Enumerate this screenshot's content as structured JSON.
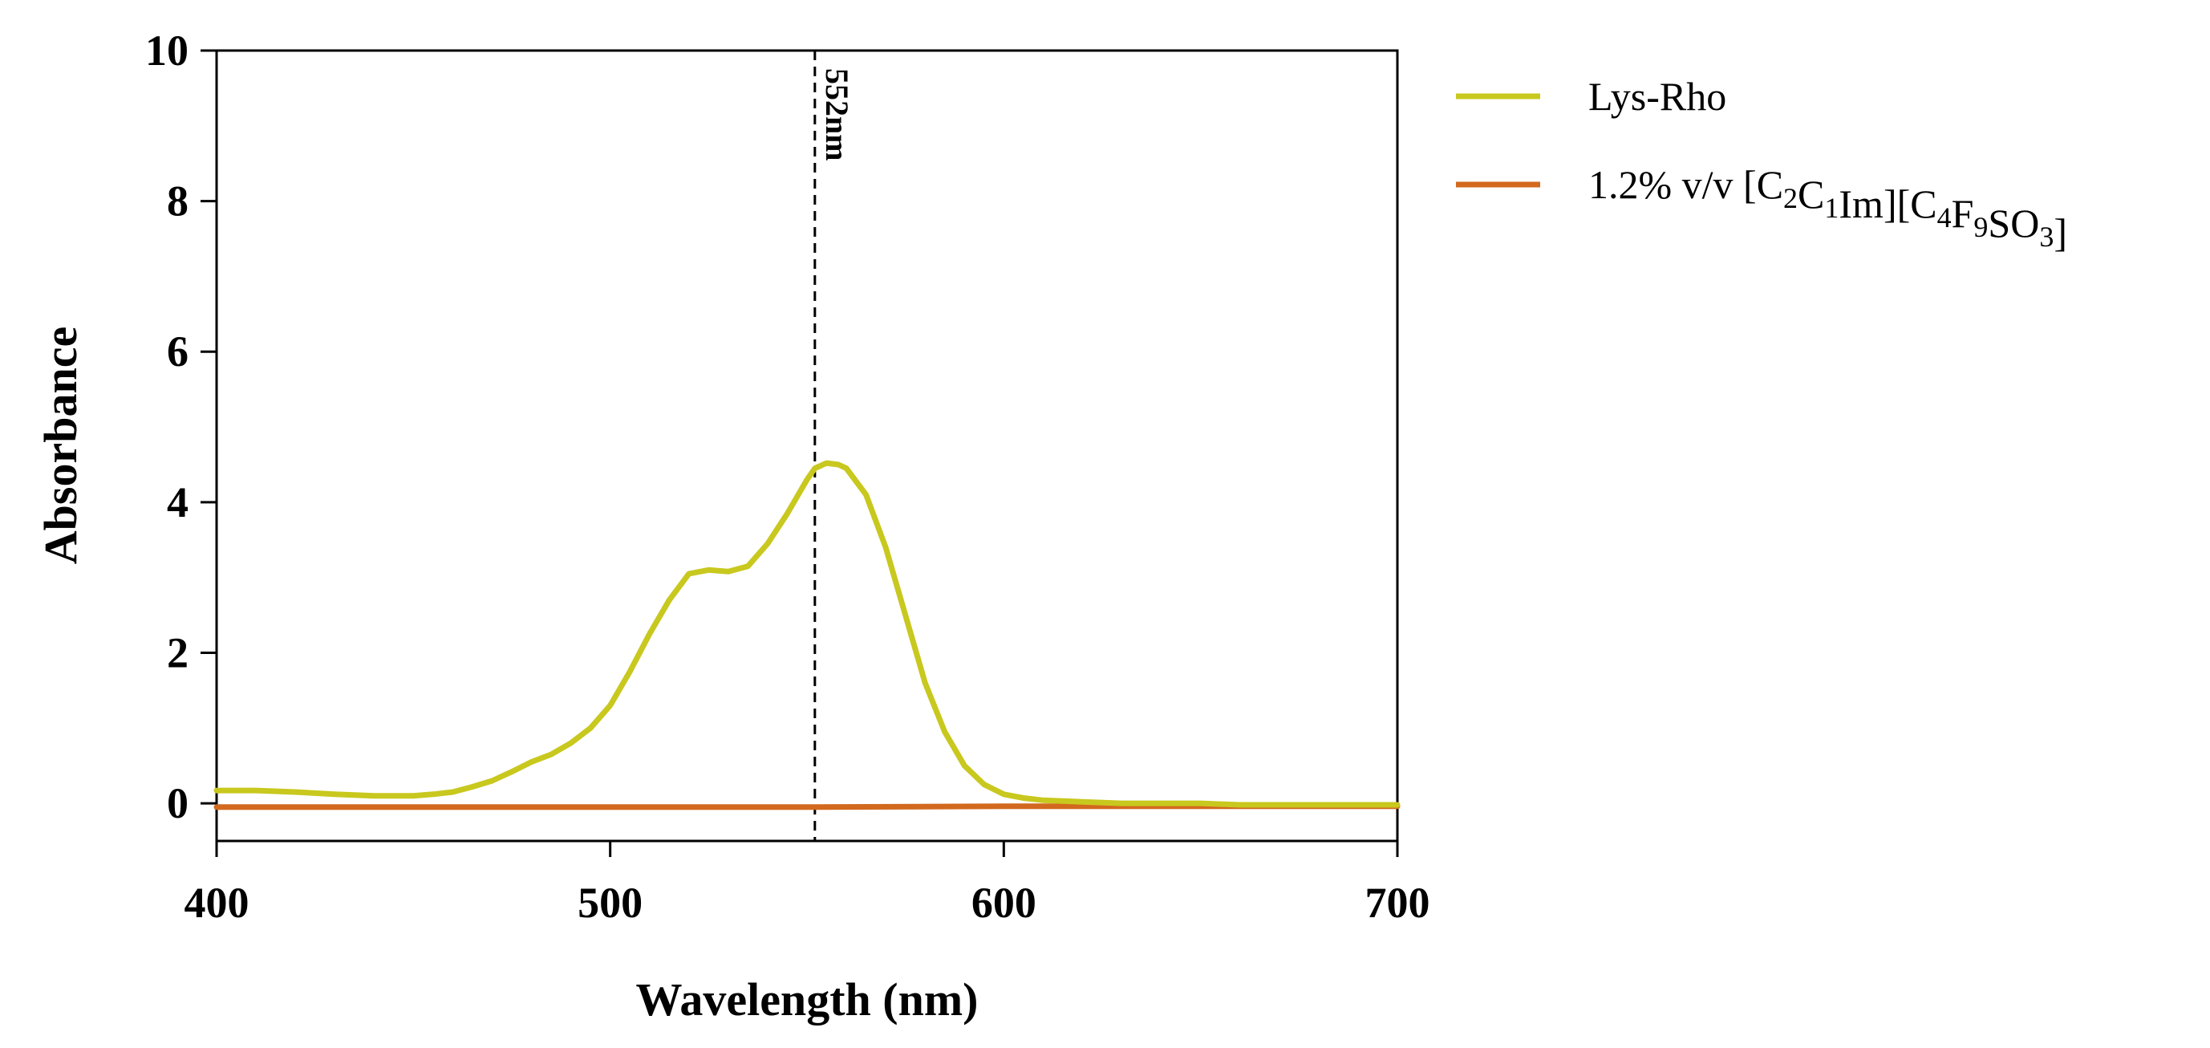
{
  "chart_data": {
    "type": "line",
    "title": "",
    "xlabel": "Wavelength (nm)",
    "ylabel": "Absorbance",
    "xlim": [
      400,
      700
    ],
    "ylim": [
      -0.5,
      10
    ],
    "xticks": [
      400,
      500,
      600,
      700
    ],
    "yticks": [
      0,
      2,
      4,
      6,
      8,
      10
    ],
    "xtick_labels": [
      "400",
      "500",
      "600",
      "700"
    ],
    "ytick_labels": [
      "0",
      "2",
      "4",
      "6",
      "8",
      "10"
    ],
    "grid": false,
    "legend_position": "right",
    "series": [
      {
        "name": "Lys-Rho",
        "name_parts": [
          {
            "t": "Lys-Rho"
          }
        ],
        "color": "#c8c81e",
        "x": [
          400,
          410,
          420,
          430,
          440,
          450,
          455,
          460,
          465,
          470,
          475,
          480,
          485,
          490,
          495,
          500,
          505,
          510,
          515,
          520,
          525,
          530,
          535,
          540,
          545,
          550,
          552,
          555,
          558,
          560,
          565,
          570,
          575,
          580,
          585,
          590,
          595,
          600,
          605,
          610,
          620,
          630,
          640,
          650,
          660,
          680,
          700
        ],
        "y": [
          0.17,
          0.17,
          0.15,
          0.12,
          0.1,
          0.1,
          0.12,
          0.15,
          0.22,
          0.3,
          0.42,
          0.55,
          0.65,
          0.8,
          1.0,
          1.3,
          1.75,
          2.25,
          2.7,
          3.05,
          3.1,
          3.08,
          3.15,
          3.45,
          3.85,
          4.3,
          4.45,
          4.52,
          4.5,
          4.45,
          4.1,
          3.4,
          2.5,
          1.6,
          0.95,
          0.5,
          0.25,
          0.12,
          0.07,
          0.04,
          0.02,
          0.0,
          0.0,
          0.0,
          -0.02,
          -0.02,
          -0.02
        ]
      },
      {
        "name": "1.2% v/v [C2C1Im][C4F9SO3]",
        "name_parts": [
          {
            "t": "1.2% v/v [C"
          },
          {
            "t": "2",
            "sub": true
          },
          {
            "t": "C"
          },
          {
            "t": "1",
            "sub": true
          },
          {
            "t": "Im][C"
          },
          {
            "t": "4",
            "sub": true
          },
          {
            "t": "F"
          },
          {
            "t": "9",
            "sub": true
          },
          {
            "t": "SO"
          },
          {
            "t": "3",
            "sub": true
          },
          {
            "t": "]"
          }
        ],
        "color": "#d2691e",
        "x": [
          400,
          450,
          500,
          550,
          600,
          650,
          700
        ],
        "y": [
          -0.05,
          -0.05,
          -0.05,
          -0.05,
          -0.04,
          -0.04,
          -0.04
        ]
      }
    ],
    "annotations": [
      {
        "type": "vline",
        "x": 552,
        "label": "552nm",
        "style": "dashed"
      }
    ]
  }
}
